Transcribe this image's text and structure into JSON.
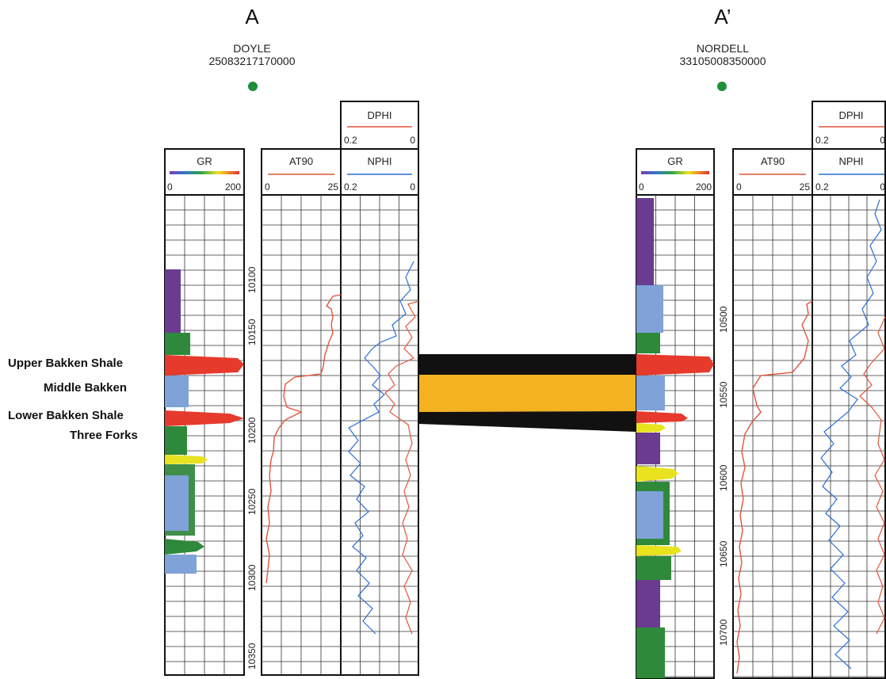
{
  "section": {
    "left_label": "A",
    "right_label": "A’"
  },
  "formations": [
    {
      "name": "Upper Bakken Shale",
      "band_color": "#111111"
    },
    {
      "name": "Middle Bakken",
      "band_color": "#f4b120"
    },
    {
      "name": "Lower Bakken Shale",
      "band_color": "#111111"
    },
    {
      "name": "Three Forks",
      "band_color": ""
    }
  ],
  "wells": [
    {
      "name": "DOYLE",
      "api": "25083217170000",
      "marker_color": "#1f8f3a",
      "tracks": {
        "gr": {
          "label": "GR",
          "min": "0",
          "max": "200"
        },
        "at90": {
          "label": "AT90",
          "min": "0",
          "max": "25"
        },
        "nphi": {
          "label": "NPHI",
          "min": "0.2",
          "max": "0"
        },
        "dphi": {
          "label": "DPHI",
          "min": "0.2",
          "max": "0"
        }
      },
      "depth_ticks": [
        "10100",
        "10150",
        "10200",
        "10250",
        "10300",
        "10350"
      ]
    },
    {
      "name": "NORDELL",
      "api": "33105008350000",
      "marker_color": "#1f8f3a",
      "tracks": {
        "gr": {
          "label": "GR",
          "min": "0",
          "max": "200"
        },
        "at90": {
          "label": "AT90",
          "min": "0",
          "max": "25"
        },
        "nphi": {
          "label": "NPHI",
          "min": "0.2",
          "max": "0"
        },
        "dphi": {
          "label": "DPHI",
          "min": "0.2",
          "max": "0"
        }
      },
      "depth_ticks": [
        "10500",
        "10550",
        "10600",
        "10650",
        "10700"
      ]
    }
  ],
  "colors": {
    "at90_curve": "#e2553a",
    "nphi_curve": "#2a6fd6",
    "dphi_curve": "#e2553a",
    "grid": "#222222"
  }
}
